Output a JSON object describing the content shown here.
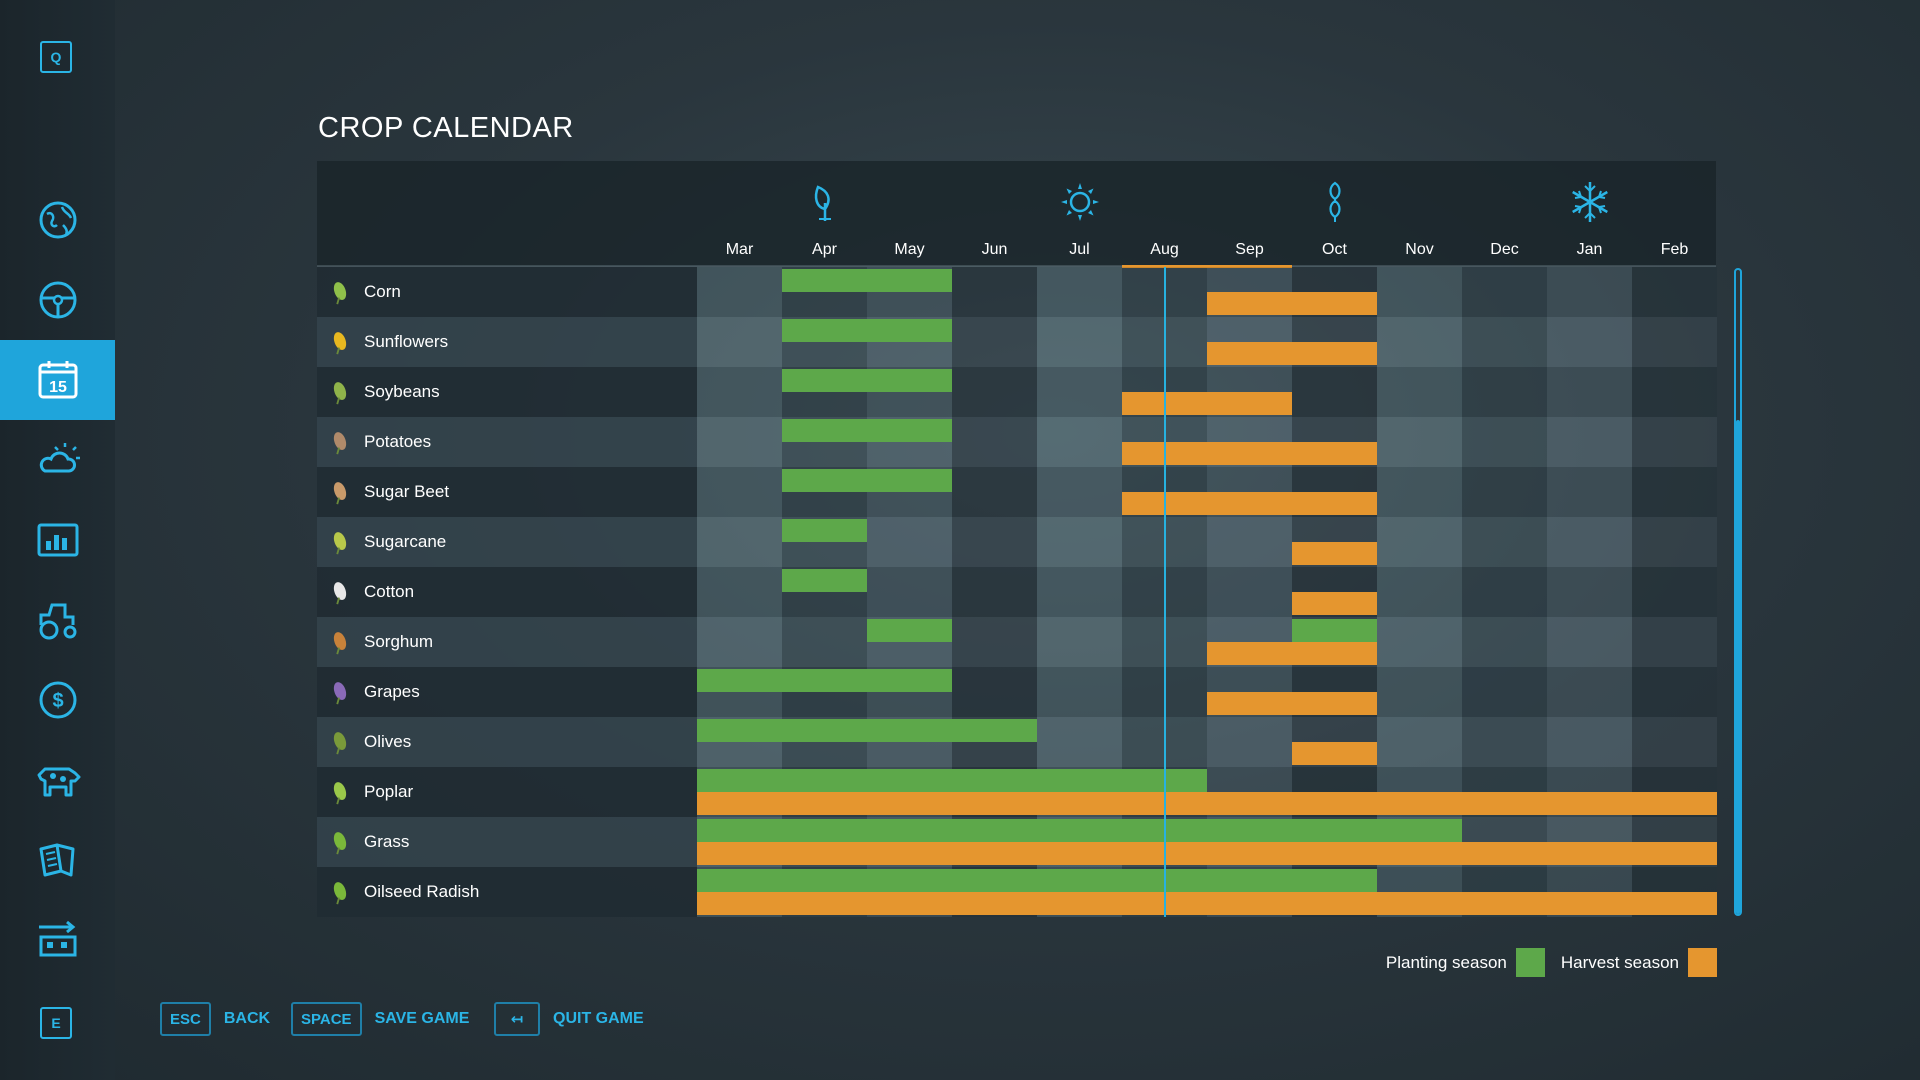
{
  "sidebar": {
    "top_key": "Q",
    "bottom_key": "E",
    "items": [
      {
        "icon": "globe-map-icon"
      },
      {
        "icon": "steering-wheel-icon"
      },
      {
        "icon": "calendar-icon",
        "label": "15",
        "active": true
      },
      {
        "icon": "weather-icon"
      },
      {
        "icon": "statistics-icon"
      },
      {
        "icon": "tractor-icon"
      },
      {
        "icon": "finance-icon"
      },
      {
        "icon": "animals-icon"
      },
      {
        "icon": "handbook-icon"
      },
      {
        "icon": "production-chains-icon"
      }
    ]
  },
  "page": {
    "title": "CROP CALENDAR"
  },
  "calendar": {
    "months": [
      "Mar",
      "Apr",
      "May",
      "Jun",
      "Jul",
      "Aug",
      "Sep",
      "Oct",
      "Nov",
      "Dec",
      "Jan",
      "Feb"
    ],
    "current_month": "Aug",
    "season_icons": [
      {
        "name": "spring-sprout-icon",
        "month": "Apr"
      },
      {
        "name": "summer-sun-icon",
        "month": "Jul"
      },
      {
        "name": "autumn-leaves-icon",
        "month": "Oct"
      },
      {
        "name": "winter-snowflake-icon",
        "month": "Jan"
      }
    ],
    "crops": [
      {
        "name": "Corn",
        "icon": "corn-icon",
        "icon_color": "#8fc04a",
        "planting": [
          [
            1,
            3
          ]
        ],
        "harvest": [
          [
            6,
            8
          ]
        ]
      },
      {
        "name": "Sunflowers",
        "icon": "sunflower-icon",
        "icon_color": "#e8b820",
        "planting": [
          [
            1,
            3
          ]
        ],
        "harvest": [
          [
            6,
            8
          ]
        ]
      },
      {
        "name": "Soybeans",
        "icon": "soybean-icon",
        "icon_color": "#8fb34a",
        "planting": [
          [
            1,
            3
          ]
        ],
        "harvest": [
          [
            5,
            7
          ]
        ]
      },
      {
        "name": "Potatoes",
        "icon": "potato-icon",
        "icon_color": "#b08a6a",
        "planting": [
          [
            1,
            3
          ]
        ],
        "harvest": [
          [
            5,
            8
          ]
        ]
      },
      {
        "name": "Sugar Beet",
        "icon": "sugar-beet-icon",
        "icon_color": "#c99a6a",
        "planting": [
          [
            1,
            3
          ]
        ],
        "harvest": [
          [
            5,
            8
          ]
        ]
      },
      {
        "name": "Sugarcane",
        "icon": "sugarcane-icon",
        "icon_color": "#b8c84a",
        "planting": [
          [
            1,
            2
          ]
        ],
        "harvest": [
          [
            7,
            8
          ]
        ]
      },
      {
        "name": "Cotton",
        "icon": "cotton-icon",
        "icon_color": "#e8e8e8",
        "planting": [
          [
            1,
            2
          ]
        ],
        "harvest": [
          [
            7,
            8
          ]
        ]
      },
      {
        "name": "Sorghum",
        "icon": "sorghum-icon",
        "icon_color": "#c8823a",
        "planting": [
          [
            2,
            3
          ],
          [
            7,
            8
          ]
        ],
        "harvest": [
          [
            6,
            8
          ]
        ]
      },
      {
        "name": "Grapes",
        "icon": "grapes-icon",
        "icon_color": "#8a6ab8",
        "planting": [
          [
            0,
            3
          ]
        ],
        "harvest": [
          [
            6,
            8
          ]
        ]
      },
      {
        "name": "Olives",
        "icon": "olives-icon",
        "icon_color": "#7a9a3a",
        "planting": [
          [
            0,
            4
          ]
        ],
        "harvest": [
          [
            7,
            8
          ]
        ]
      },
      {
        "name": "Poplar",
        "icon": "poplar-icon",
        "icon_color": "#9ac84a",
        "planting": [
          [
            0,
            6
          ]
        ],
        "harvest": [
          [
            0,
            12
          ]
        ]
      },
      {
        "name": "Grass",
        "icon": "grass-icon",
        "icon_color": "#7ab83a",
        "planting": [
          [
            0,
            9
          ]
        ],
        "harvest": [
          [
            0,
            12
          ]
        ]
      },
      {
        "name": "Oilseed Radish",
        "icon": "oilseed-radish-icon",
        "icon_color": "#7ab83a",
        "planting": [
          [
            0,
            8
          ]
        ],
        "harvest": [
          [
            0,
            12
          ]
        ]
      }
    ]
  },
  "legend": {
    "planting_label": "Planting season",
    "harvest_label": "Harvest season",
    "planting_color": "#5da84a",
    "harvest_color": "#e5962f"
  },
  "footer": {
    "back": {
      "key": "ESC",
      "label": "BACK"
    },
    "save": {
      "key": "SPACE",
      "label": "SAVE GAME"
    },
    "quit": {
      "key": "↤",
      "label": "QUIT GAME"
    }
  }
}
